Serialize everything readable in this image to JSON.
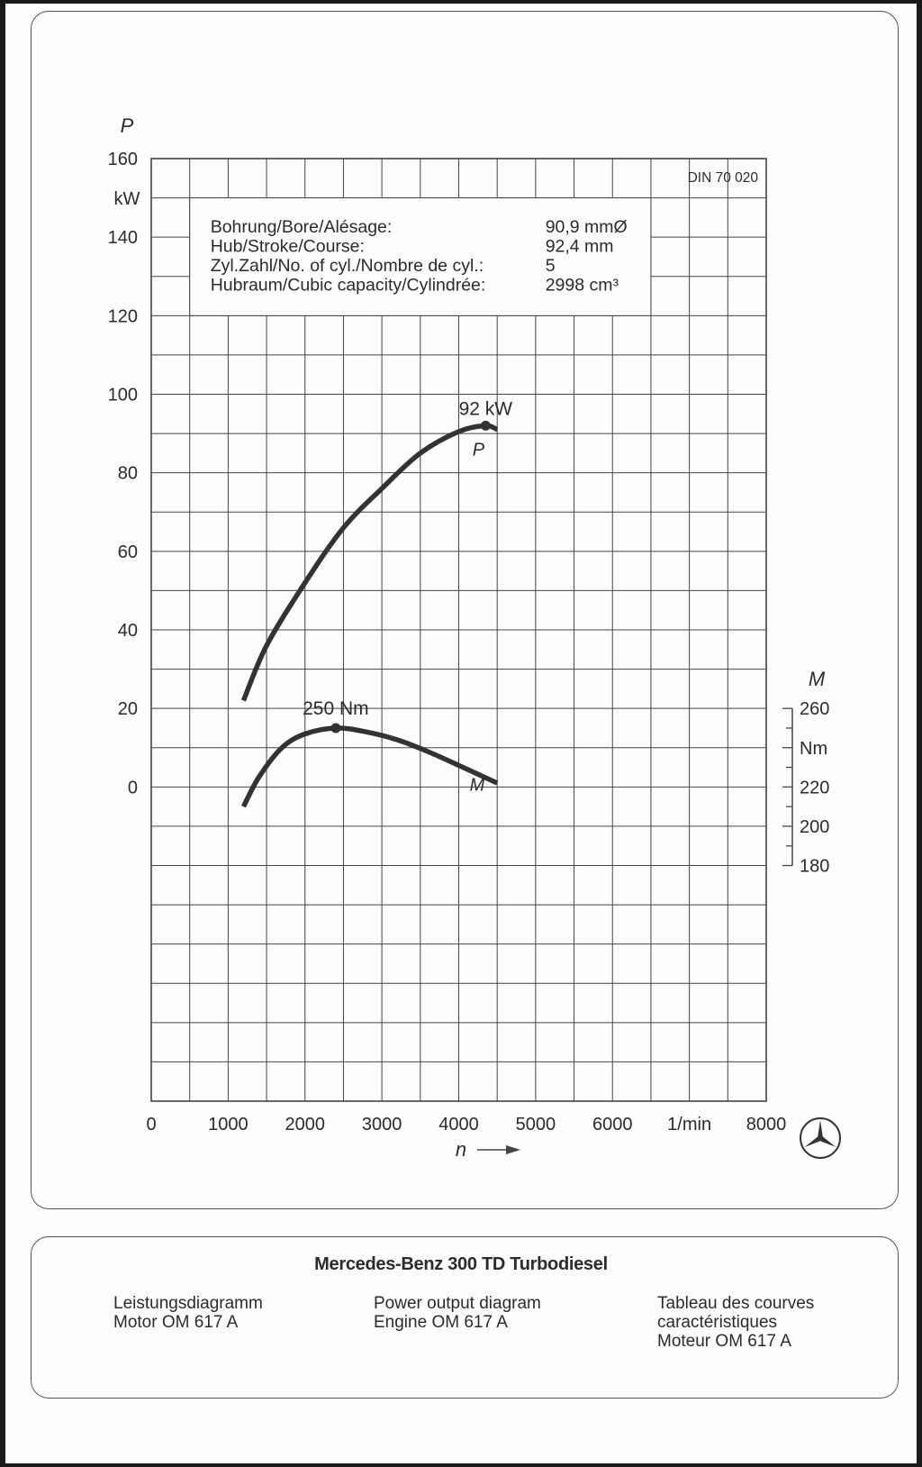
{
  "chart_data": {
    "type": "line",
    "x_axis": {
      "symbol": "n",
      "unit": "1/min",
      "range": [
        0,
        8000
      ],
      "ticks": [
        "0",
        "1000",
        "2000",
        "3000",
        "4000",
        "5000",
        "6000",
        "1/min",
        "8000"
      ]
    },
    "y_axis_left": {
      "symbol": "P",
      "unit": "kW",
      "range": [
        -80,
        160
      ],
      "ticks": [
        "0",
        "20",
        "40",
        "60",
        "80",
        "100",
        "120",
        "140",
        "160"
      ]
    },
    "y_axis_right": {
      "symbol": "M",
      "unit": "Nm",
      "range": [
        180,
        260
      ],
      "ticks": [
        "180",
        "200",
        "220",
        "260"
      ]
    },
    "grid": true,
    "standard": "DIN 70 020",
    "specs": [
      {
        "label": "Bohrung/Bore/Alésage:",
        "value": "90,9 mmØ"
      },
      {
        "label": "Hub/Stroke/Course:",
        "value": "92,4 mm"
      },
      {
        "label": "Zyl.Zahl/No. of cyl./Nombre de cyl.:",
        "value": "5"
      },
      {
        "label": "Hubraum/Cubic capacity/Cylindrée:",
        "value": "2998 cm³"
      }
    ],
    "series": [
      {
        "name": "P",
        "axis": "left",
        "points": [
          [
            1200,
            22
          ],
          [
            1500,
            36
          ],
          [
            2000,
            52
          ],
          [
            2500,
            66
          ],
          [
            3000,
            76
          ],
          [
            3500,
            85
          ],
          [
            4000,
            90.5
          ],
          [
            4350,
            92
          ],
          [
            4500,
            91
          ]
        ],
        "peak": {
          "x": 4350,
          "y": 92,
          "label": "92 kW"
        }
      },
      {
        "name": "M",
        "axis": "right",
        "points": [
          [
            1200,
            210
          ],
          [
            1400,
            225
          ],
          [
            1700,
            240
          ],
          [
            2000,
            247
          ],
          [
            2400,
            250
          ],
          [
            2800,
            248
          ],
          [
            3200,
            244
          ],
          [
            3600,
            238
          ],
          [
            4000,
            231
          ],
          [
            4500,
            222
          ]
        ],
        "peak": {
          "x": 2400,
          "y": 250,
          "label": "250 Nm"
        }
      }
    ]
  },
  "caption": {
    "title": "Mercedes-Benz 300 TD Turbodiesel",
    "columns": [
      [
        "Leistungsdiagramm",
        "Motor OM 617 A"
      ],
      [
        "Power output diagram",
        "Engine OM 617 A"
      ],
      [
        "Tableau des courves",
        "caractéristiques",
        "Moteur OM 617 A"
      ]
    ]
  },
  "logo": "mercedes-star-icon",
  "colors": {
    "curve": "#333333",
    "grid": "#444444"
  }
}
